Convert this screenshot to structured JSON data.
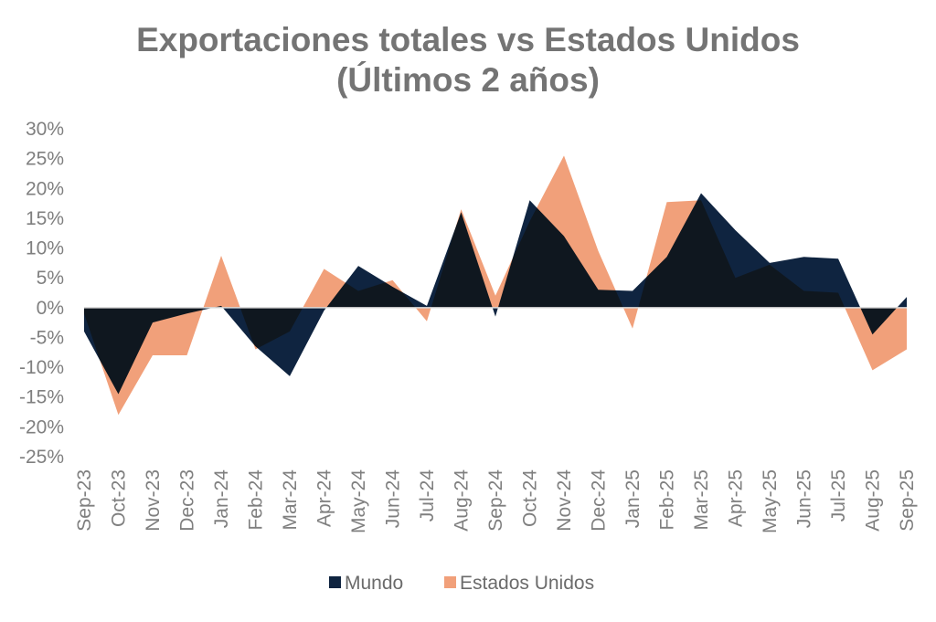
{
  "chart_data": {
    "type": "area",
    "title_line1": "Exportaciones totales vs Estados Unidos",
    "title_line2": "(Últimos 2 años)",
    "xlabel": "",
    "ylabel": "",
    "ylim": [
      -25,
      30
    ],
    "ytick_step": 5,
    "ytick_suffix": "%",
    "grid": false,
    "legend_position": "bottom",
    "categories": [
      "Sep-23",
      "Oct-23",
      "Nov-23",
      "Dec-23",
      "Jan-24",
      "Feb-24",
      "Mar-24",
      "Apr-24",
      "May-24",
      "Jun-24",
      "Jul-24",
      "Aug-24",
      "Sep-24",
      "Oct-24",
      "Nov-24",
      "Dec-24",
      "Jan-25",
      "Feb-25",
      "Mar-25",
      "Apr-25",
      "May-25",
      "Jun-25",
      "Jul-25",
      "Aug-25",
      "Sep-25"
    ],
    "series": [
      {
        "name": "Mundo",
        "color": "#0f2440",
        "values": [
          -4,
          -14.5,
          -2.5,
          -1,
          0.3,
          -6.5,
          -11.5,
          -0.5,
          7,
          3.5,
          0.3,
          16,
          -1.5,
          18,
          12,
          3,
          2.8,
          8.5,
          19.2,
          13,
          7.5,
          8.5,
          8.2,
          -4.5,
          1.8
        ]
      },
      {
        "name": "Estados Unidos",
        "color": "#f1a07a",
        "values": [
          -1,
          -18,
          -8,
          -8,
          8.7,
          -7,
          -4,
          6.5,
          2.8,
          4.6,
          -2.3,
          16.5,
          2,
          14.5,
          25.5,
          9.5,
          -3.5,
          17.7,
          18,
          5,
          7.2,
          2.8,
          2.5,
          -10.5,
          -7
        ]
      }
    ]
  }
}
